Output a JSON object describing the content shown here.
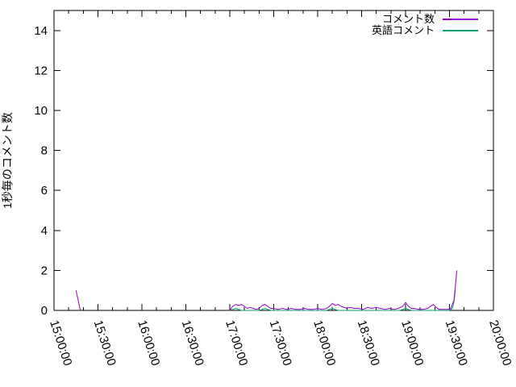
{
  "chart_data": {
    "type": "line",
    "title": "",
    "xlabel": "",
    "ylabel": "1秒毎のコメント数",
    "ylim": [
      0,
      15
    ],
    "yticks": [
      0,
      2,
      4,
      6,
      8,
      10,
      12,
      14
    ],
    "xtick_labels": [
      "15:00:00",
      "15:30:00",
      "16:00:00",
      "16:30:00",
      "17:00:00",
      "17:30:00",
      "18:00:00",
      "18:30:00",
      "19:00:00",
      "19:30:00",
      "20:00:00"
    ],
    "x_minor_interval_min": 10,
    "x_range_min": 300,
    "grid": false,
    "legend_position": "top-right-inside",
    "axis_color": "#000000",
    "background_color": "#ffffff",
    "series": [
      {
        "name": "コメント数",
        "color": "#9400d3",
        "segments": [
          [
            [
              "15:15",
              1.0
            ],
            [
              "15:18",
              0.0
            ]
          ],
          [
            [
              "17:00",
              0.0
            ],
            [
              "17:02",
              0.2
            ],
            [
              "17:04",
              0.3
            ],
            [
              "17:06",
              0.25
            ],
            [
              "17:08",
              0.3
            ],
            [
              "17:10",
              0.2
            ],
            [
              "17:12",
              0.1
            ],
            [
              "17:14",
              0.15
            ],
            [
              "17:16",
              0.1
            ],
            [
              "17:18",
              0.05
            ],
            [
              "17:20",
              0.1
            ],
            [
              "17:22",
              0.25
            ],
            [
              "17:24",
              0.3
            ],
            [
              "17:26",
              0.2
            ],
            [
              "17:28",
              0.1
            ],
            [
              "17:30",
              0.1
            ],
            [
              "17:33",
              0.05
            ],
            [
              "17:36",
              0.1
            ],
            [
              "17:39",
              0.05
            ],
            [
              "17:42",
              0.1
            ],
            [
              "17:45",
              0.05
            ],
            [
              "17:48",
              0.05
            ],
            [
              "17:51",
              0.1
            ],
            [
              "17:54",
              0.05
            ],
            [
              "17:57",
              0.05
            ],
            [
              "18:00",
              0.1
            ],
            [
              "18:03",
              0.05
            ],
            [
              "18:06",
              0.1
            ],
            [
              "18:08",
              0.2
            ],
            [
              "18:10",
              0.35
            ],
            [
              "18:12",
              0.25
            ],
            [
              "18:14",
              0.3
            ],
            [
              "18:16",
              0.2
            ],
            [
              "18:18",
              0.15
            ],
            [
              "18:20",
              0.1
            ],
            [
              "18:22",
              0.15
            ],
            [
              "18:25",
              0.1
            ],
            [
              "18:28",
              0.1
            ],
            [
              "18:31",
              0.05
            ],
            [
              "18:34",
              0.15
            ],
            [
              "18:37",
              0.1
            ],
            [
              "18:40",
              0.15
            ],
            [
              "18:43",
              0.1
            ],
            [
              "18:46",
              0.05
            ],
            [
              "18:49",
              0.1
            ],
            [
              "18:52",
              0.05
            ],
            [
              "18:55",
              0.1
            ],
            [
              "18:58",
              0.2
            ],
            [
              "19:00",
              0.4
            ],
            [
              "19:02",
              0.2
            ],
            [
              "19:04",
              0.1
            ],
            [
              "19:06",
              0.1
            ],
            [
              "19:09",
              0.05
            ],
            [
              "19:12",
              0.05
            ],
            [
              "19:15",
              0.1
            ],
            [
              "19:17",
              0.2
            ],
            [
              "19:19",
              0.3
            ],
            [
              "19:21",
              0.15
            ],
            [
              "19:23",
              0.05
            ],
            [
              "19:25",
              0.05
            ],
            [
              "19:27",
              0.05
            ],
            [
              "19:29",
              0.05
            ],
            [
              "19:31",
              0.1
            ],
            [
              "19:33",
              0.5
            ],
            [
              "19:34",
              1.2
            ],
            [
              "19:35",
              2.0
            ]
          ]
        ]
      },
      {
        "name": "英語コメント",
        "color": "#009e73",
        "segments": [
          [
            [
              "17:00",
              0.0
            ],
            [
              "17:02",
              0.05
            ],
            [
              "17:04",
              0.1
            ],
            [
              "17:06",
              0.05
            ],
            [
              "17:08",
              0.0
            ],
            [
              "17:20",
              0.0
            ],
            [
              "17:22",
              0.05
            ],
            [
              "17:24",
              0.1
            ],
            [
              "17:26",
              0.05
            ],
            [
              "17:28",
              0.0
            ],
            [
              "18:06",
              0.0
            ],
            [
              "18:08",
              0.05
            ],
            [
              "18:10",
              0.1
            ],
            [
              "18:12",
              0.05
            ],
            [
              "18:14",
              0.0
            ],
            [
              "18:56",
              0.0
            ],
            [
              "18:58",
              0.05
            ],
            [
              "19:00",
              0.1
            ],
            [
              "19:02",
              0.05
            ],
            [
              "19:04",
              0.0
            ],
            [
              "19:30",
              0.0
            ],
            [
              "19:32",
              0.1
            ],
            [
              "19:33",
              0.4
            ],
            [
              "19:34",
              1.0
            ]
          ]
        ]
      }
    ]
  }
}
